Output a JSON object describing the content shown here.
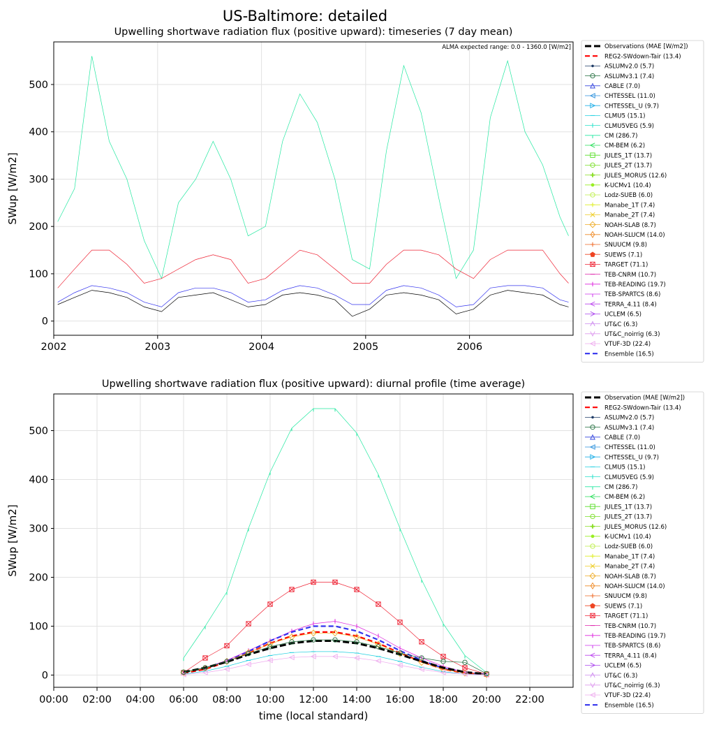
{
  "figure": {
    "title": "US-Baltimore: detailed"
  },
  "chart_data": [
    {
      "type": "line",
      "title": "Upwelling shortwave radiation flux (positive upward): timeseries (7 day mean)",
      "xlabel": "",
      "ylabel": "SWup [W/m2]",
      "annotation": "ALMA expected range: 0.0 - 1360.0 [W/m2]",
      "x_ticks": [
        "2002",
        "2003",
        "2004",
        "2005",
        "2006"
      ],
      "x_range": [
        "2002-01-01",
        "2006-12-31"
      ],
      "ylim": [
        -30,
        590
      ],
      "y_ticks": [
        0,
        100,
        200,
        300,
        400,
        500
      ],
      "grid": true,
      "legend_placement": "right, outside",
      "legend": [
        {
          "name": "Observations (MAE [W/m2])",
          "color": "#000000",
          "marker": "none",
          "style": "dashed-thick"
        },
        {
          "name": "REG2-SWdown-Tair (13.4)",
          "color": "#ff0000",
          "marker": "none",
          "style": "dashed"
        },
        {
          "name": "ASLUMv2.0 (5.7)",
          "color": "#1f3b66",
          "marker": "dot"
        },
        {
          "name": "ASLUMv3.1 (7.4)",
          "color": "#1e6b3a",
          "marker": "circle"
        },
        {
          "name": "CABLE (7.0)",
          "color": "#3344dd",
          "marker": "triangle-up"
        },
        {
          "name": "CHTESSEL (11.0)",
          "color": "#2a8fdb",
          "marker": "triangle-left"
        },
        {
          "name": "CHTESSEL_U (9.7)",
          "color": "#22b0e8",
          "marker": "triangle-right"
        },
        {
          "name": "CLMU5 (15.1)",
          "color": "#20d0e0",
          "marker": "hline"
        },
        {
          "name": "CLMU5VEG (5.9)",
          "color": "#22e0c8",
          "marker": "vline"
        },
        {
          "name": "CM (286.7)",
          "color": "#22e8a0",
          "marker": "tick-down"
        },
        {
          "name": "CM-BEM (6.2)",
          "color": "#22dd55",
          "marker": "caret-left"
        },
        {
          "name": "JULES_1T (13.7)",
          "color": "#55dd22",
          "marker": "square"
        },
        {
          "name": "JULES_2T (13.7)",
          "color": "#77dd22",
          "marker": "hexagon"
        },
        {
          "name": "JULES_MORUS (12.6)",
          "color": "#88dd22",
          "marker": "plus-filled"
        },
        {
          "name": "K-UCMv1 (10.4)",
          "color": "#99ee22",
          "marker": "star"
        },
        {
          "name": "Lodz-SUEB (6.0)",
          "color": "#bbee44",
          "marker": "octagon"
        },
        {
          "name": "Manabe_1T (7.4)",
          "color": "#ddee22",
          "marker": "plus"
        },
        {
          "name": "Manabe_2T (7.4)",
          "color": "#eecc22",
          "marker": "x"
        },
        {
          "name": "NOAH-SLAB (8.7)",
          "color": "#eeaa22",
          "marker": "diamond"
        },
        {
          "name": "NOAH-SLUCM (14.0)",
          "color": "#ee8822",
          "marker": "thin-diamond"
        },
        {
          "name": "SNUUCM (9.8)",
          "color": "#ee6622",
          "marker": "plus"
        },
        {
          "name": "SUEWS (7.1)",
          "color": "#ee4422",
          "marker": "pentagon"
        },
        {
          "name": "TARGET (71.1)",
          "color": "#ee2233",
          "marker": "square-x"
        },
        {
          "name": "TEB-CNRM (10.7)",
          "color": "#dd22aa",
          "marker": "hline"
        },
        {
          "name": "TEB-READING (19.7)",
          "color": "#dd22dd",
          "marker": "vline"
        },
        {
          "name": "TEB-SPARTCS (8.6)",
          "color": "#cc33ee",
          "marker": "tick-down"
        },
        {
          "name": "TERRA_4.11 (8.4)",
          "color": "#bb44ee",
          "marker": "caret-left"
        },
        {
          "name": "UCLEM (6.5)",
          "color": "#aa44ee",
          "marker": "caret-right"
        },
        {
          "name": "UT&C (6.3)",
          "color": "#cc88ee",
          "marker": "caret-up"
        },
        {
          "name": "UT&C_noirrig (6.3)",
          "color": "#dd99ee",
          "marker": "caret-down"
        },
        {
          "name": "VTUF-3D (22.4)",
          "color": "#eeaaee",
          "marker": "triangle-left"
        },
        {
          "name": "Ensemble (16.5)",
          "color": "#3333ee",
          "marker": "none",
          "style": "dashed"
        }
      ],
      "series": [
        {
          "name": "CM (286.7)",
          "color": "#22e8a0",
          "x": [
            "2002-01",
            "2002-03",
            "2002-05",
            "2002-07",
            "2002-09",
            "2002-11",
            "2003-01",
            "2003-03",
            "2003-05",
            "2003-07",
            "2003-09",
            "2003-11",
            "2004-01",
            "2004-03",
            "2004-05",
            "2004-07",
            "2004-09",
            "2004-11",
            "2005-01",
            "2005-03",
            "2005-05",
            "2005-07",
            "2005-09",
            "2005-11",
            "2006-01",
            "2006-03",
            "2006-05",
            "2006-07",
            "2006-09",
            "2006-11",
            "2006-12"
          ],
          "values": [
            210,
            280,
            560,
            380,
            300,
            170,
            90,
            250,
            300,
            380,
            300,
            180,
            200,
            380,
            480,
            420,
            300,
            130,
            110,
            360,
            540,
            440,
            260,
            90,
            150,
            430,
            550,
            400,
            330,
            220,
            180
          ]
        },
        {
          "name": "TARGET (71.1)",
          "color": "#ee2233",
          "x": [
            "2002-01",
            "2002-03",
            "2002-05",
            "2002-07",
            "2002-09",
            "2002-11",
            "2003-01",
            "2003-03",
            "2003-05",
            "2003-07",
            "2003-09",
            "2003-11",
            "2004-01",
            "2004-03",
            "2004-05",
            "2004-07",
            "2004-09",
            "2004-11",
            "2005-01",
            "2005-03",
            "2005-05",
            "2005-07",
            "2005-09",
            "2005-11",
            "2006-01",
            "2006-03",
            "2006-05",
            "2006-07",
            "2006-09",
            "2006-11",
            "2006-12"
          ],
          "values": [
            70,
            110,
            150,
            150,
            120,
            80,
            90,
            110,
            130,
            140,
            130,
            80,
            90,
            120,
            150,
            140,
            110,
            80,
            80,
            120,
            150,
            150,
            140,
            110,
            90,
            130,
            150,
            150,
            150,
            100,
            80
          ]
        },
        {
          "name": "Ensemble (16.5)",
          "color": "#3333ee",
          "x": [
            "2002-01",
            "2002-03",
            "2002-05",
            "2002-07",
            "2002-09",
            "2002-11",
            "2003-01",
            "2003-03",
            "2003-05",
            "2003-07",
            "2003-09",
            "2003-11",
            "2004-01",
            "2004-03",
            "2004-05",
            "2004-07",
            "2004-09",
            "2004-11",
            "2005-01",
            "2005-03",
            "2005-05",
            "2005-07",
            "2005-09",
            "2005-11",
            "2006-01",
            "2006-03",
            "2006-05",
            "2006-07",
            "2006-09",
            "2006-11",
            "2006-12"
          ],
          "values": [
            40,
            60,
            75,
            70,
            60,
            40,
            30,
            60,
            70,
            70,
            60,
            40,
            45,
            65,
            75,
            70,
            55,
            35,
            35,
            65,
            75,
            70,
            55,
            30,
            35,
            70,
            75,
            75,
            70,
            45,
            40
          ]
        },
        {
          "name": "Observations (MAE [W/m2])",
          "color": "#000000",
          "x": [
            "2002-01",
            "2002-03",
            "2002-05",
            "2002-07",
            "2002-09",
            "2002-11",
            "2003-01",
            "2003-03",
            "2003-05",
            "2003-07",
            "2003-09",
            "2003-11",
            "2004-01",
            "2004-03",
            "2004-05",
            "2004-07",
            "2004-09",
            "2004-11",
            "2005-01",
            "2005-03",
            "2005-05",
            "2005-07",
            "2005-09",
            "2005-11",
            "2006-01",
            "2006-03",
            "2006-05",
            "2006-07",
            "2006-09",
            "2006-11",
            "2006-12"
          ],
          "values": [
            35,
            50,
            65,
            60,
            50,
            30,
            20,
            50,
            55,
            60,
            45,
            30,
            35,
            55,
            60,
            55,
            45,
            10,
            25,
            55,
            60,
            55,
            45,
            15,
            25,
            55,
            65,
            60,
            55,
            35,
            30
          ]
        }
      ]
    },
    {
      "type": "line",
      "title": "Upwelling shortwave radiation flux (positive upward): diurnal profile (time average)",
      "xlabel": "time (local standard)",
      "ylabel": "SWup [W/m2]",
      "x_ticks": [
        "00:00",
        "02:00",
        "04:00",
        "06:00",
        "08:00",
        "10:00",
        "12:00",
        "14:00",
        "16:00",
        "18:00",
        "20:00",
        "22:00"
      ],
      "xlim": [
        0,
        24
      ],
      "ylim": [
        -25,
        575
      ],
      "y_ticks": [
        0,
        100,
        200,
        300,
        400,
        500
      ],
      "grid": true,
      "legend_placement": "right, outside",
      "legend": [
        {
          "name": "Observation (MAE [W/m2])",
          "color": "#000000",
          "marker": "none",
          "style": "dashed-thick"
        },
        {
          "name": "REG2-SWdown-Tair (13.4)",
          "color": "#ff0000",
          "marker": "none",
          "style": "dashed"
        },
        {
          "name": "ASLUMv2.0 (5.7)",
          "color": "#1f3b66",
          "marker": "dot"
        },
        {
          "name": "ASLUMv3.1 (7.4)",
          "color": "#1e6b3a",
          "marker": "circle"
        },
        {
          "name": "CABLE (7.0)",
          "color": "#3344dd",
          "marker": "triangle-up"
        },
        {
          "name": "CHTESSEL (11.0)",
          "color": "#2a8fdb",
          "marker": "triangle-left"
        },
        {
          "name": "CHTESSEL_U (9.7)",
          "color": "#22b0e8",
          "marker": "triangle-right"
        },
        {
          "name": "CLMU5 (15.1)",
          "color": "#20d0e0",
          "marker": "hline"
        },
        {
          "name": "CLMU5VEG (5.9)",
          "color": "#22e0c8",
          "marker": "vline"
        },
        {
          "name": "CM (286.7)",
          "color": "#22e8a0",
          "marker": "tick-down"
        },
        {
          "name": "CM-BEM (6.2)",
          "color": "#22dd55",
          "marker": "caret-left"
        },
        {
          "name": "JULES_1T (13.7)",
          "color": "#55dd22",
          "marker": "square"
        },
        {
          "name": "JULES_2T (13.7)",
          "color": "#77dd22",
          "marker": "hexagon"
        },
        {
          "name": "JULES_MORUS (12.6)",
          "color": "#88dd22",
          "marker": "plus-filled"
        },
        {
          "name": "K-UCMv1 (10.4)",
          "color": "#99ee22",
          "marker": "star"
        },
        {
          "name": "Lodz-SUEB (6.0)",
          "color": "#bbee44",
          "marker": "octagon"
        },
        {
          "name": "Manabe_1T (7.4)",
          "color": "#ddee22",
          "marker": "plus"
        },
        {
          "name": "Manabe_2T (7.4)",
          "color": "#eecc22",
          "marker": "x"
        },
        {
          "name": "NOAH-SLAB (8.7)",
          "color": "#eeaa22",
          "marker": "diamond"
        },
        {
          "name": "NOAH-SLUCM (14.0)",
          "color": "#ee8822",
          "marker": "thin-diamond"
        },
        {
          "name": "SNUUCM (9.8)",
          "color": "#ee6622",
          "marker": "plus"
        },
        {
          "name": "SUEWS (7.1)",
          "color": "#ee4422",
          "marker": "pentagon"
        },
        {
          "name": "TARGET (71.1)",
          "color": "#ee2233",
          "marker": "square-x"
        },
        {
          "name": "TEB-CNRM (10.7)",
          "color": "#dd22aa",
          "marker": "hline"
        },
        {
          "name": "TEB-READING (19.7)",
          "color": "#dd22dd",
          "marker": "vline"
        },
        {
          "name": "TEB-SPARTCS (8.6)",
          "color": "#cc33ee",
          "marker": "tick-down"
        },
        {
          "name": "TERRA_4.11 (8.4)",
          "color": "#bb44ee",
          "marker": "caret-left"
        },
        {
          "name": "UCLEM (6.5)",
          "color": "#aa44ee",
          "marker": "caret-right"
        },
        {
          "name": "UT&C (6.3)",
          "color": "#cc88ee",
          "marker": "caret-up"
        },
        {
          "name": "UT&C_noirrig (6.3)",
          "color": "#dd99ee",
          "marker": "caret-down"
        },
        {
          "name": "VTUF-3D (22.4)",
          "color": "#eeaaee",
          "marker": "triangle-left"
        },
        {
          "name": "Ensemble (16.5)",
          "color": "#3333ee",
          "marker": "none",
          "style": "dashed"
        }
      ],
      "x": [
        6,
        7,
        8,
        9,
        10,
        11,
        12,
        13,
        14,
        15,
        16,
        17,
        18,
        19,
        20
      ],
      "series": [
        {
          "name": "CM (286.7)",
          "color": "#22e8a0",
          "marker": "tick-down",
          "values": [
            35,
            100,
            170,
            300,
            415,
            505,
            545,
            545,
            495,
            410,
            300,
            195,
            105,
            40,
            5
          ]
        },
        {
          "name": "TARGET (71.1)",
          "color": "#ee2233",
          "marker": "square-x",
          "values": [
            5,
            35,
            60,
            105,
            145,
            175,
            190,
            190,
            175,
            145,
            108,
            68,
            38,
            15,
            2
          ]
        },
        {
          "name": "TEB-READING (19.7)",
          "color": "#dd22dd",
          "marker": "vline",
          "values": [
            5,
            15,
            30,
            50,
            70,
            90,
            105,
            110,
            100,
            80,
            55,
            35,
            18,
            6,
            1
          ]
        },
        {
          "name": "Ensemble (16.5)",
          "color": "#3333ee",
          "marker": "none",
          "style": "dashed",
          "values": [
            5,
            14,
            28,
            48,
            70,
            88,
            100,
            100,
            90,
            72,
            50,
            30,
            14,
            5,
            1
          ]
        },
        {
          "name": "REG2-SWdown-Tair (13.4)",
          "color": "#ff0000",
          "marker": "none",
          "style": "dashed",
          "values": [
            4,
            12,
            27,
            45,
            65,
            80,
            88,
            88,
            80,
            65,
            45,
            27,
            12,
            4,
            1
          ]
        },
        {
          "name": "NOAH-SLAB (8.7)",
          "color": "#eeaa22",
          "marker": "diamond",
          "values": [
            5,
            14,
            28,
            46,
            64,
            78,
            86,
            86,
            78,
            63,
            44,
            26,
            12,
            4,
            1
          ]
        },
        {
          "name": "Observation (MAE [W/m2])",
          "color": "#000000",
          "marker": "none",
          "style": "dashed-thick",
          "values": [
            6,
            15,
            27,
            42,
            55,
            65,
            70,
            70,
            65,
            55,
            42,
            28,
            15,
            6,
            2
          ]
        },
        {
          "name": "CLMU5 (15.1)",
          "color": "#20d0e0",
          "marker": "hline",
          "values": [
            2,
            8,
            18,
            30,
            40,
            46,
            48,
            48,
            45,
            38,
            28,
            16,
            7,
            2,
            0
          ]
        },
        {
          "name": "VTUF-3D (22.4)",
          "color": "#eeaaee",
          "marker": "triangle-left",
          "values": [
            1,
            5,
            12,
            22,
            30,
            36,
            38,
            38,
            35,
            29,
            20,
            12,
            5,
            2,
            0
          ]
        },
        {
          "name": "ASLUMv3.1 (7.4)",
          "color": "#1e6b3a",
          "marker": "circle",
          "values": [
            6,
            15,
            28,
            44,
            58,
            68,
            72,
            72,
            68,
            58,
            45,
            35,
            28,
            26,
            3
          ]
        }
      ]
    }
  ]
}
